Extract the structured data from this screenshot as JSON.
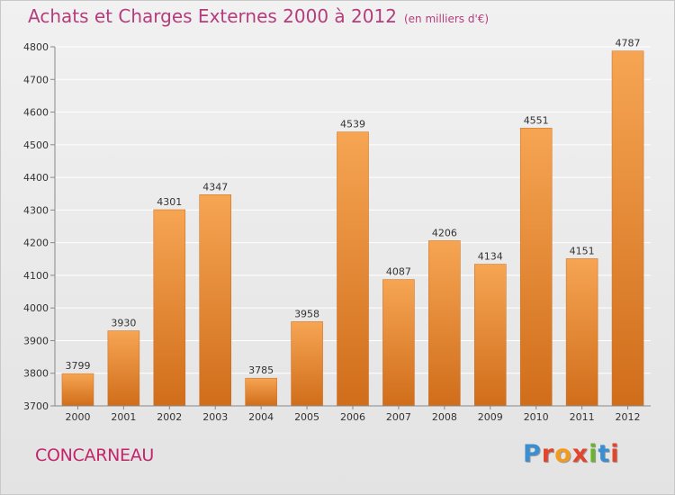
{
  "header": {
    "title": "Achats et Charges Externes 2000 à 2012",
    "subtitle": "(en milliers d'€)"
  },
  "footer": {
    "city": "CONCARNEAU",
    "logo_text": "Proxiti",
    "logo_colors": [
      "#3a8fd0",
      "#e2452b",
      "#f39b1e",
      "#e2452b",
      "#6ab32e",
      "#3a8fd0",
      "#e2452b"
    ]
  },
  "colors": {
    "bar_top": "#f6a553",
    "bar_bottom": "#d06d1a",
    "grid": "#ffffff",
    "text": "#333333"
  },
  "chart_data": {
    "type": "bar",
    "categories": [
      "2000",
      "2001",
      "2002",
      "2003",
      "2004",
      "2005",
      "2006",
      "2007",
      "2008",
      "2009",
      "2010",
      "2011",
      "2012"
    ],
    "values": [
      3799,
      3930,
      4301,
      4347,
      3785,
      3958,
      4539,
      4087,
      4206,
      4134,
      4551,
      4151,
      4787
    ],
    "title": "Achats et Charges Externes 2000 à 2012",
    "ylim": [
      3700,
      4800
    ],
    "yticks": [
      3700,
      3800,
      3900,
      4000,
      4100,
      4200,
      4300,
      4400,
      4500,
      4600,
      4700,
      4800
    ],
    "grid": true,
    "data_labels": true
  }
}
